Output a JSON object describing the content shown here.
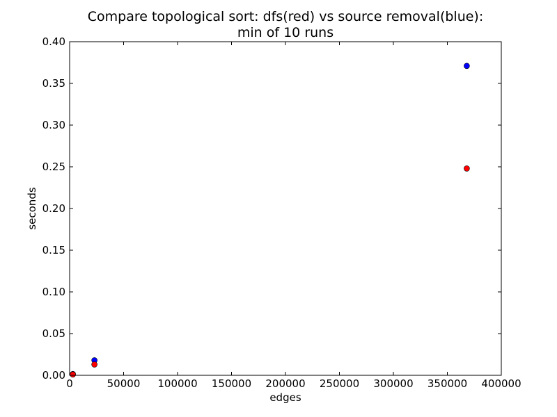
{
  "chart_data": {
    "type": "scatter",
    "title": "Compare topological sort: dfs(red) vs source removal(blue):",
    "subtitle": "min of 10 runs",
    "xlabel": "edges",
    "ylabel": "seconds",
    "xlim": [
      0,
      400000
    ],
    "ylim": [
      0,
      0.4
    ],
    "x_ticks": [
      0,
      50000,
      100000,
      150000,
      200000,
      250000,
      300000,
      350000,
      400000
    ],
    "x_tick_labels": [
      "0",
      "50000",
      "100000",
      "150000",
      "200000",
      "250000",
      "300000",
      "350000",
      "400000"
    ],
    "y_ticks": [
      0,
      0.05,
      0.1,
      0.15,
      0.2,
      0.25,
      0.3,
      0.35,
      0.4
    ],
    "y_tick_labels": [
      "0.00",
      "0.05",
      "0.10",
      "0.15",
      "0.20",
      "0.25",
      "0.30",
      "0.35",
      "0.40"
    ],
    "grid": false,
    "series": [
      {
        "key": "dfs",
        "color": "#ff0000",
        "points": [
          {
            "x": 3000,
            "y": 0.001
          },
          {
            "x": 23000,
            "y": 0.013
          },
          {
            "x": 368000,
            "y": 0.248
          }
        ]
      },
      {
        "key": "source-removal",
        "color": "#0000ff",
        "points": [
          {
            "x": 3000,
            "y": 0.0015
          },
          {
            "x": 23000,
            "y": 0.018
          },
          {
            "x": 368000,
            "y": 0.371
          }
        ]
      }
    ]
  }
}
